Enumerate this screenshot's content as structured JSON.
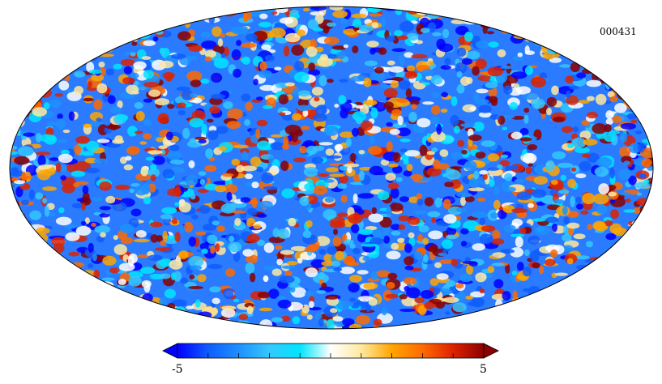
{
  "map_id": "000431",
  "colorbar": {
    "min_label": "-5",
    "max_label": "5",
    "min_value": -5,
    "max_value": 5,
    "colors": [
      "#0000ff",
      "#0f5cff",
      "#1e90ff",
      "#35c7ff",
      "#00e5ff",
      "#ffffff",
      "#ffe9a0",
      "#ffa500",
      "#ff6a00",
      "#dd2200",
      "#8b0000"
    ]
  },
  "map": {
    "projection": "mollweide",
    "outline_color": "#000000"
  }
}
